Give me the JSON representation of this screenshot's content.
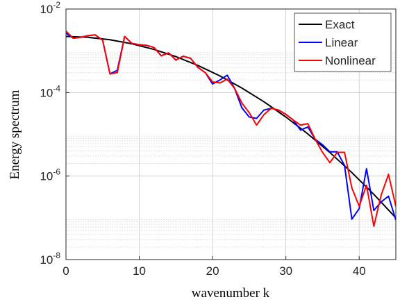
{
  "chart_data": {
    "type": "line",
    "xlabel": "wavenumber k",
    "ylabel": "Energy spectrum",
    "xlim": [
      0,
      45
    ],
    "xticks": [
      0,
      10,
      20,
      30,
      40
    ],
    "ylim": [
      1e-08,
      0.01
    ],
    "yscale": "log",
    "yticks": [
      {
        "value": 1e-08,
        "label": "10^-8"
      },
      {
        "value": 1e-06,
        "label": "10^-6"
      },
      {
        "value": 0.0001,
        "label": "10^-4"
      },
      {
        "value": 0.01,
        "label": "10^-2"
      }
    ],
    "grid": true,
    "minor_grid": true,
    "legend": "upper right",
    "series": [
      {
        "name": "Exact",
        "color": "#000000",
        "x": [
          0,
          3,
          6,
          9,
          12,
          15,
          18,
          21,
          24,
          27,
          30,
          33,
          36,
          39,
          42,
          45
        ],
        "values": [
          0.0022,
          0.0021,
          0.00184,
          0.00147,
          0.00108,
          0.000726,
          0.000445,
          0.00025,
          0.000128,
          6.03e-05,
          2.59e-05,
          1.02e-05,
          3.67e-06,
          1.21e-06,
          3.64e-07,
          1e-07
        ]
      },
      {
        "name": "Linear",
        "color": "#0000ff",
        "x": [
          0,
          1,
          2,
          3,
          4,
          5,
          6,
          7,
          8,
          9,
          10,
          11,
          12,
          13,
          14,
          15,
          16,
          17,
          18,
          19,
          20,
          21,
          22,
          23,
          24,
          25,
          26,
          27,
          28,
          29,
          30,
          31,
          32,
          33,
          34,
          35,
          36,
          37,
          38,
          39,
          40,
          41,
          42,
          43,
          44,
          45
        ],
        "values": [
          0.00263,
          0.002,
          0.0021,
          0.0023,
          0.0024,
          0.0018,
          0.00028,
          0.00034,
          0.0022,
          0.0015,
          0.0014,
          0.00135,
          0.0012,
          0.00076,
          0.00089,
          0.0006,
          0.00074,
          0.00066,
          0.0004,
          0.0003,
          0.00016,
          0.0002,
          0.00026,
          0.000126,
          4.3e-05,
          2.6e-05,
          2.4e-05,
          3.8e-05,
          4.2e-05,
          3.8e-05,
          3e-05,
          2.2e-05,
          1.26e-05,
          1.5e-05,
          7.6e-06,
          5.6e-06,
          3.8e-06,
          3.8e-06,
          1.8e-06,
          9.3e-08,
          1.66e-07,
          1.5e-06,
          1.5e-07,
          2.4e-07,
          3.3e-07,
          8.9e-08
        ]
      },
      {
        "name": "Nonlinear",
        "color": "#ff0000",
        "x": [
          0,
          1,
          2,
          3,
          4,
          5,
          6,
          7,
          8,
          9,
          10,
          11,
          12,
          13,
          14,
          15,
          16,
          17,
          18,
          19,
          20,
          21,
          22,
          23,
          24,
          25,
          26,
          27,
          28,
          29,
          30,
          31,
          32,
          33,
          34,
          35,
          36,
          37,
          38,
          39,
          40,
          41,
          42,
          43,
          44,
          45
        ],
        "values": [
          0.00295,
          0.002,
          0.0021,
          0.0023,
          0.0024,
          0.0018,
          0.00028,
          0.0003,
          0.0022,
          0.0015,
          0.0014,
          0.00135,
          0.0012,
          0.00076,
          0.00089,
          0.0006,
          0.00074,
          0.00066,
          0.0004,
          0.0003,
          0.00018,
          0.00017,
          0.00021,
          0.000126,
          5.6e-05,
          3.3e-05,
          1.66e-05,
          2.95e-05,
          4.2e-05,
          3.8e-05,
          3e-05,
          2.2e-05,
          1.66e-05,
          1.8e-05,
          7.6e-06,
          3.7e-06,
          2.1e-06,
          3.7e-06,
          3.7e-06,
          5.2e-07,
          1.9e-07,
          6e-07,
          6.3e-08,
          3.5e-07,
          1.1e-06,
          1.9e-07
        ]
      }
    ]
  }
}
